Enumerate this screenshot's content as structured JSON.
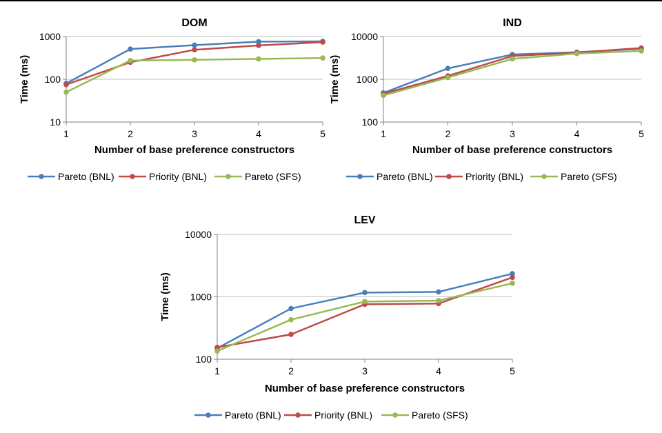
{
  "chart_data": [
    {
      "type": "line",
      "title": "DOM",
      "xlabel": "Number of base preference constructors",
      "ylabel": "Time (ms)",
      "yscale": "log",
      "ylim": [
        10,
        1000
      ],
      "yticks": [
        "10",
        "100",
        "1000"
      ],
      "x": [
        1,
        2,
        3,
        4,
        5
      ],
      "xticks": [
        "1",
        "2",
        "3",
        "4",
        "5"
      ],
      "grid": true,
      "legend": "bottom",
      "series": [
        {
          "name": "Pareto (BNL)",
          "color": "#4a7ebb",
          "values": [
            80,
            510,
            630,
            760,
            770
          ]
        },
        {
          "name": "Priority (BNL)",
          "color": "#be4b48",
          "values": [
            75,
            250,
            490,
            620,
            740
          ]
        },
        {
          "name": "Pareto (SFS)",
          "color": "#98b954",
          "values": [
            50,
            275,
            285,
            300,
            315
          ]
        }
      ]
    },
    {
      "type": "line",
      "title": "IND",
      "xlabel": "Number of base preference constructors",
      "ylabel": "Time (ms)",
      "yscale": "log",
      "ylim": [
        100,
        10000
      ],
      "yticks": [
        "100",
        "1000",
        "10000"
      ],
      "x": [
        1,
        2,
        3,
        4,
        5
      ],
      "xticks": [
        "1",
        "2",
        "3",
        "4",
        "5"
      ],
      "grid": true,
      "legend": "bottom",
      "series": [
        {
          "name": "Pareto (BNL)",
          "color": "#4a7ebb",
          "values": [
            480,
            1800,
            3800,
            4300,
            5200
          ]
        },
        {
          "name": "Priority (BNL)",
          "color": "#be4b48",
          "values": [
            460,
            1200,
            3500,
            4200,
            5400
          ]
        },
        {
          "name": "Pareto (SFS)",
          "color": "#98b954",
          "values": [
            420,
            1100,
            3000,
            4000,
            4600
          ]
        }
      ]
    },
    {
      "type": "line",
      "title": "LEV",
      "xlabel": "Number of base preference constructors",
      "ylabel": "Time (ms)",
      "yscale": "log",
      "ylim": [
        100,
        10000
      ],
      "yticks": [
        "100",
        "1000",
        "10000"
      ],
      "x": [
        1,
        2,
        3,
        4,
        5
      ],
      "xticks": [
        "1",
        "2",
        "3",
        "4",
        "5"
      ],
      "grid": true,
      "legend": "bottom",
      "series": [
        {
          "name": "Pareto (BNL)",
          "color": "#4a7ebb",
          "values": [
            150,
            650,
            1170,
            1200,
            2350
          ]
        },
        {
          "name": "Priority (BNL)",
          "color": "#be4b48",
          "values": [
            155,
            250,
            760,
            780,
            2050
          ]
        },
        {
          "name": "Pareto (SFS)",
          "color": "#98b954",
          "values": [
            135,
            430,
            840,
            870,
            1650
          ]
        }
      ]
    }
  ]
}
